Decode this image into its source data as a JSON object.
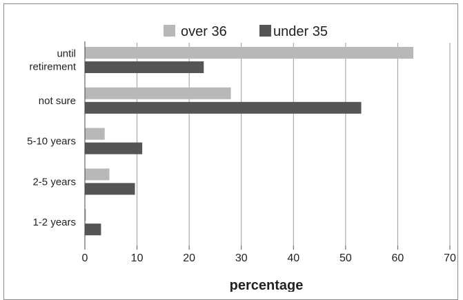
{
  "chart_data": {
    "type": "bar",
    "orientation": "horizontal",
    "categories": [
      [
        "until",
        "retirement"
      ],
      [
        "not sure"
      ],
      [
        "5-10 years"
      ],
      [
        "2-5 years"
      ],
      [
        "1-2 years"
      ]
    ],
    "series": [
      {
        "name": "over 36",
        "color": "#b8b8b8",
        "values": [
          63,
          28,
          3.8,
          4.7,
          0.2
        ]
      },
      {
        "name": "under 35",
        "color": "#555555",
        "values": [
          22.8,
          53,
          11,
          9.6,
          3.1
        ]
      }
    ],
    "xlabel": "percentage",
    "xlim": [
      0,
      70
    ],
    "xticks": [
      0,
      10,
      20,
      30,
      40,
      50,
      60,
      70
    ],
    "grid": "vertical",
    "legend": "top-center"
  }
}
